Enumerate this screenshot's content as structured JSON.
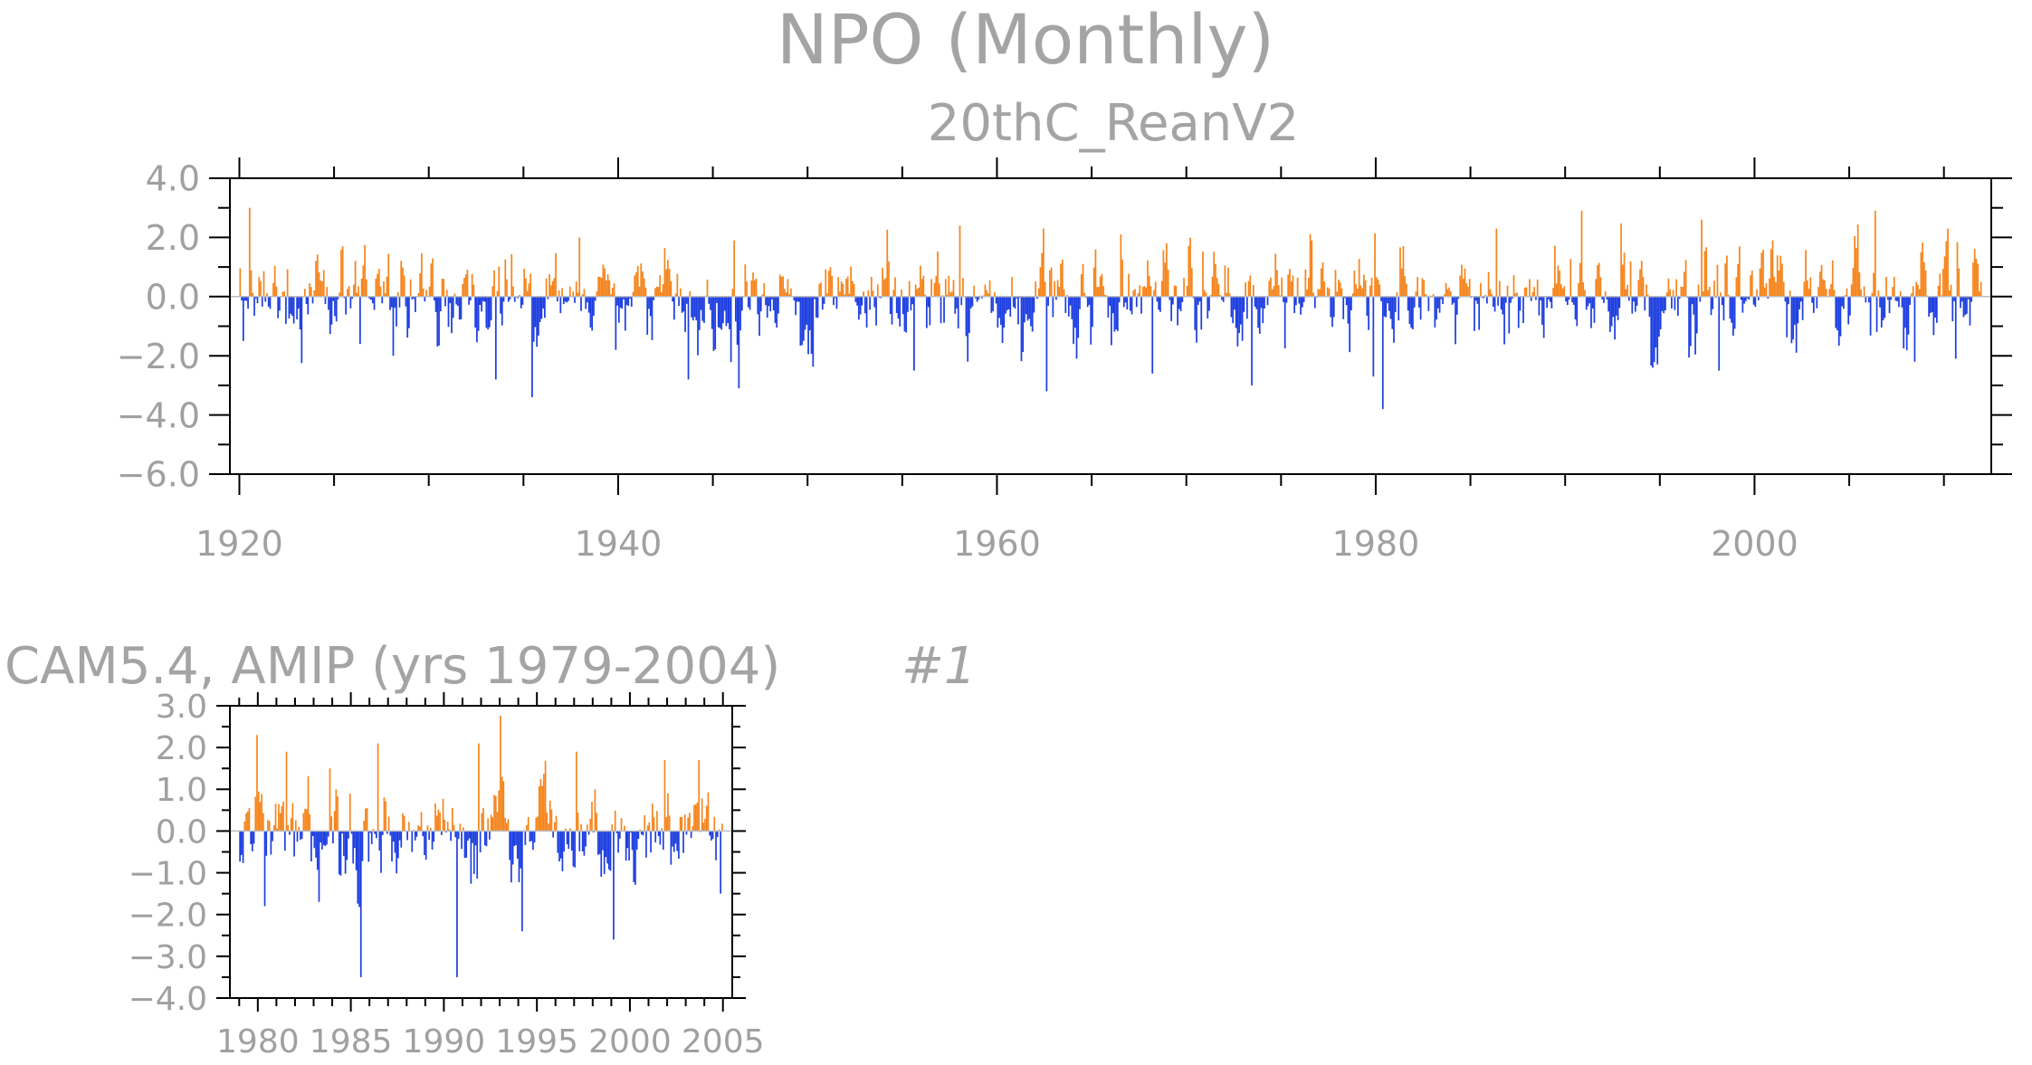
{
  "figure": {
    "title": "NPO (Monthly)",
    "colors": {
      "positive": "#f5861f",
      "negative": "#1e3fe0",
      "axis": "#000000",
      "text": "#a0a0a0"
    }
  },
  "chart_data": [
    {
      "type": "bar",
      "subtitle": "20thC_ReanV2",
      "x_start": 1920.0,
      "x_end": 2012.0,
      "xlim": [
        1919.5,
        2012.5
      ],
      "ylim": [
        -6.0,
        4.0
      ],
      "x_ticks": [
        "1920",
        "1940",
        "1960",
        "1980",
        "2000"
      ],
      "x_tick_values": [
        1920,
        1940,
        1960,
        1980,
        2000
      ],
      "y_ticks": [
        "4.0",
        "2.0",
        "0.0",
        "−2.0",
        "−4.0",
        "−6.0"
      ],
      "y_tick_values": [
        4,
        2,
        0,
        -2,
        -4,
        -6
      ],
      "baseline": 0.0,
      "peaks": [
        {
          "x": 1920.5,
          "v": 3.0
        },
        {
          "x": 1920.2,
          "v": -1.5
        },
        {
          "x": 1926.3,
          "v": -1.6
        },
        {
          "x": 1928.1,
          "v": -2.0
        },
        {
          "x": 1933.5,
          "v": -2.8
        },
        {
          "x": 1935.4,
          "v": -3.4
        },
        {
          "x": 1937.9,
          "v": 2.0
        },
        {
          "x": 1939.8,
          "v": -1.8
        },
        {
          "x": 1943.7,
          "v": -2.8
        },
        {
          "x": 1946.1,
          "v": 1.9
        },
        {
          "x": 1946.3,
          "v": -3.1
        },
        {
          "x": 1955.6,
          "v": -2.5
        },
        {
          "x": 1958.0,
          "v": 2.4
        },
        {
          "x": 1962.4,
          "v": 2.3
        },
        {
          "x": 1962.6,
          "v": -3.2
        },
        {
          "x": 1966.5,
          "v": 2.1
        },
        {
          "x": 1968.2,
          "v": -2.6
        },
        {
          "x": 1973.4,
          "v": -3.0
        },
        {
          "x": 1979.8,
          "v": -2.7
        },
        {
          "x": 1980.3,
          "v": -3.8
        },
        {
          "x": 1986.3,
          "v": 2.3
        },
        {
          "x": 1990.8,
          "v": 2.9
        },
        {
          "x": 1997.2,
          "v": 2.6
        },
        {
          "x": 1998.1,
          "v": -2.5
        },
        {
          "x": 2006.3,
          "v": 2.9
        },
        {
          "x": 2008.4,
          "v": -2.2
        },
        {
          "x": 2010.6,
          "v": -2.1
        },
        {
          "x": 2010.2,
          "v": 2.3
        }
      ],
      "seed": 20,
      "sd": 0.85
    },
    {
      "type": "bar",
      "title": "CAM5.4, AMIP (yrs 1979-2004)",
      "label": "#1",
      "x_start": 1979.0,
      "x_end": 2005.0,
      "xlim": [
        1978.5,
        2005.5
      ],
      "ylim": [
        -4.0,
        3.0
      ],
      "x_ticks": [
        "1980",
        "1985",
        "1990",
        "1995",
        "2000",
        "2005"
      ],
      "x_tick_values": [
        1980,
        1985,
        1990,
        1995,
        2000,
        2005
      ],
      "y_ticks": [
        "3.0",
        "2.0",
        "1.0",
        "0.0",
        "−1.0",
        "−2.0",
        "−3.0",
        "−4.0"
      ],
      "y_tick_values": [
        3,
        2,
        1,
        0,
        -1,
        -2,
        -3,
        -4
      ],
      "baseline": 0.0,
      "peaks": [
        {
          "x": 1979.9,
          "v": 2.3
        },
        {
          "x": 1980.3,
          "v": -1.8
        },
        {
          "x": 1981.5,
          "v": 1.9
        },
        {
          "x": 1983.8,
          "v": 1.5
        },
        {
          "x": 1985.5,
          "v": -3.5
        },
        {
          "x": 1986.4,
          "v": 2.1
        },
        {
          "x": 1990.7,
          "v": -3.5
        },
        {
          "x": 1991.8,
          "v": 2.1
        },
        {
          "x": 1993.0,
          "v": 3.0
        },
        {
          "x": 1994.2,
          "v": -2.4
        },
        {
          "x": 1997.1,
          "v": 1.9
        },
        {
          "x": 1999.1,
          "v": -2.6
        },
        {
          "x": 2001.8,
          "v": 1.7
        },
        {
          "x": 2003.7,
          "v": 1.7
        },
        {
          "x": 2004.8,
          "v": -1.5
        }
      ],
      "seed": 79,
      "sd": 0.6
    }
  ]
}
